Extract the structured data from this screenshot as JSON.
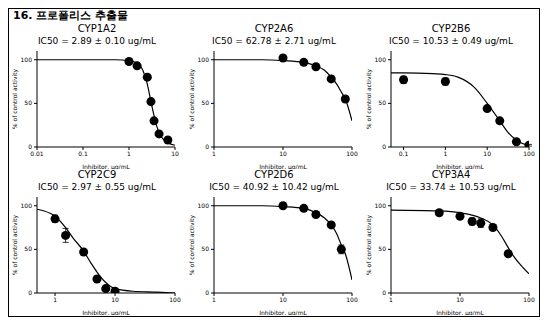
{
  "title": "16. 프로폴리스 추출물",
  "chart_data": [
    {
      "type": "line",
      "title": "CYP1A2",
      "annotation": "IC50 = 2.89 ± 0.10 ug/mL",
      "xlabel": "Inhibitor, μg/mL",
      "ylabel": "% of control activity",
      "log": "x",
      "xlim": [
        0.01,
        10
      ],
      "xticks": [
        0.01,
        0.1,
        1,
        10
      ],
      "ylim": [
        0,
        110
      ],
      "yticks": [
        0,
        50,
        100
      ],
      "color": "#000000",
      "marker": "circle",
      "points": {
        "x": [
          1,
          1.5,
          2.5,
          3,
          3.5,
          4.5,
          7
        ],
        "values": [
          98,
          93,
          80,
          52,
          30,
          15,
          8
        ],
        "errors": [
          3,
          3,
          2,
          2,
          2,
          1,
          1
        ]
      },
      "curve": {
        "x": [
          0.01,
          0.1,
          0.5,
          1,
          1.5,
          2,
          2.5,
          3,
          3.5,
          4,
          5,
          7,
          10
        ],
        "values": [
          100,
          100,
          100,
          99,
          96,
          88,
          72,
          52,
          36,
          24,
          12,
          5,
          2
        ]
      }
    },
    {
      "type": "line",
      "title": "CYP2A6",
      "annotation": "IC50 = 62.78 ± 2.71 ug/mL",
      "xlabel": "Inhibitor, μg/mL",
      "ylabel": "% of control activity",
      "log": "x",
      "xlim": [
        1,
        100
      ],
      "xticks": [
        1,
        10,
        100
      ],
      "ylim": [
        0,
        110
      ],
      "yticks": [
        0,
        50,
        100
      ],
      "color": "#000000",
      "marker": "circle",
      "points": {
        "x": [
          10,
          20,
          30,
          50,
          80
        ],
        "values": [
          102,
          97,
          92,
          78,
          55
        ],
        "errors": [
          3,
          2,
          2,
          3,
          3
        ]
      },
      "curve": {
        "x": [
          1,
          5,
          10,
          20,
          30,
          40,
          50,
          60,
          70,
          80,
          100
        ],
        "values": [
          100,
          100,
          99,
          97,
          93,
          88,
          80,
          72,
          63,
          55,
          30
        ]
      }
    },
    {
      "type": "line",
      "title": "CYP2B6",
      "annotation": "IC50 = 10.53 ± 0.49 ug/mL",
      "xlabel": "Inhibitor, μg/mL",
      "ylabel": "% of control activity",
      "log": "x",
      "xlim": [
        0.05,
        100
      ],
      "xticks": [
        0.1,
        1,
        10,
        100
      ],
      "ylim": [
        0,
        110
      ],
      "yticks": [
        0,
        50,
        100
      ],
      "color": "#000000",
      "marker": "circle",
      "points": {
        "x": [
          0.1,
          1,
          10,
          20,
          50,
          100
        ],
        "values": [
          77,
          75,
          44,
          30,
          6,
          2
        ],
        "errors": [
          4,
          4,
          2,
          3,
          2,
          1
        ]
      },
      "curve": {
        "x": [
          0.05,
          0.1,
          0.5,
          1,
          2,
          5,
          10,
          20,
          30,
          50,
          70,
          100
        ],
        "values": [
          85,
          85,
          84,
          83,
          80,
          68,
          50,
          30,
          18,
          8,
          4,
          2
        ]
      }
    },
    {
      "type": "line",
      "title": "CYP2C9",
      "annotation": "IC50 = 2.97 ± 0.55 ug/mL",
      "xlabel": "Inhibitor, μg/mL",
      "ylabel": "% of control activity",
      "log": "x",
      "xlim": [
        0.5,
        100
      ],
      "xticks": [
        1,
        10,
        100
      ],
      "ylim": [
        0,
        110
      ],
      "yticks": [
        0,
        50,
        100
      ],
      "color": "#000000",
      "marker": "circle",
      "points": {
        "x": [
          1,
          1.5,
          3,
          5,
          7,
          10
        ],
        "values": [
          85,
          66,
          47,
          16,
          5,
          2
        ],
        "errors": [
          4,
          8,
          3,
          3,
          2,
          1
        ]
      },
      "curve": {
        "x": [
          0.5,
          1,
          1.5,
          2,
          3,
          4,
          5,
          7,
          10,
          20,
          50,
          100
        ],
        "values": [
          96,
          88,
          75,
          63,
          48,
          34,
          24,
          12,
          5,
          2,
          1,
          0
        ]
      }
    },
    {
      "type": "line",
      "title": "CYP2D6",
      "annotation": "IC50 = 40.92 ± 10.42 ug/mL",
      "xlabel": "Inhibitor, μg/mL",
      "ylabel": "% of control activity",
      "log": "x",
      "xlim": [
        1,
        100
      ],
      "xticks": [
        1,
        10,
        100
      ],
      "ylim": [
        0,
        110
      ],
      "yticks": [
        0,
        50,
        100
      ],
      "color": "#000000",
      "marker": "circle",
      "points": {
        "x": [
          10,
          20,
          30,
          50,
          70
        ],
        "values": [
          100,
          97,
          90,
          78,
          50
        ],
        "errors": [
          3,
          2,
          3,
          3,
          5
        ]
      },
      "curve": {
        "x": [
          1,
          5,
          10,
          20,
          30,
          40,
          50,
          60,
          70,
          80,
          100
        ],
        "values": [
          100,
          100,
          99,
          97,
          92,
          86,
          78,
          68,
          55,
          45,
          15
        ]
      }
    },
    {
      "type": "line",
      "title": "CYP3A4",
      "annotation": "IC50 = 33.74 ± 10.53 ug/mL",
      "xlabel": "Inhibitor, μg/mL",
      "ylabel": "% of control activity",
      "log": "x",
      "xlim": [
        1,
        100
      ],
      "xticks": [
        1,
        10,
        100
      ],
      "ylim": [
        0,
        110
      ],
      "yticks": [
        0,
        50,
        100
      ],
      "color": "#000000",
      "marker": "circle",
      "points": {
        "x": [
          5,
          10,
          15,
          20,
          30,
          50
        ],
        "values": [
          92,
          88,
          82,
          80,
          75,
          45
        ],
        "errors": [
          2,
          3,
          4,
          5,
          3,
          2
        ]
      },
      "curve": {
        "x": [
          1,
          5,
          10,
          20,
          30,
          40,
          50,
          60,
          80,
          100
        ],
        "values": [
          95,
          94,
          92,
          86,
          78,
          65,
          52,
          42,
          30,
          22
        ]
      }
    }
  ]
}
